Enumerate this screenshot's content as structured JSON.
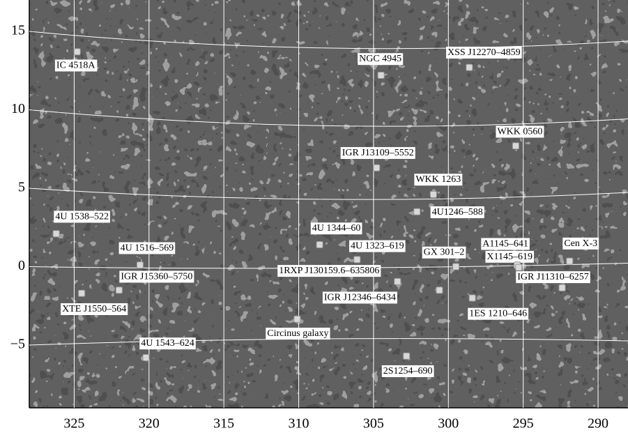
{
  "chart_data": {
    "type": "scatter",
    "labels": [
      "IC 4518A",
      "NGC 4945",
      "XSS J12270–4859",
      "WKK 0560",
      "IGR J13109–5552",
      "WKK 1263",
      "4U1246–588",
      "4U 1538–522",
      "4U 1344–60",
      "4U 1516–569",
      "4U 1323–619",
      "GX 301–2",
      "A1145–641",
      "X1145–619",
      "Cen X-3",
      "IGR J11310–6257",
      "1RXP J130159.6–635806",
      "IGR J15360–5750",
      "XTE J1550–564",
      "IGR J12346–6434",
      "1ES 1210–646",
      "Circinus galaxy",
      "4U 1543–624",
      "2S1254–690"
    ],
    "x": [
      324.8,
      304.5,
      298.6,
      295.5,
      304.8,
      301.0,
      302.1,
      326.2,
      308.6,
      320.6,
      306.1,
      299.5,
      295.4,
      295.3,
      291.9,
      292.4,
      303.4,
      322.0,
      324.5,
      300.6,
      298.4,
      310.1,
      320.2,
      302.8
    ],
    "values": [
      13.7,
      12.2,
      12.7,
      7.7,
      6.3,
      4.6,
      3.5,
      2.1,
      1.4,
      0.1,
      0.45,
      0.0,
      0.1,
      -0.05,
      0.35,
      -1.35,
      -0.95,
      -1.5,
      -1.7,
      -1.5,
      -2.0,
      -3.35,
      -5.8,
      -5.7
    ],
    "color": "#d8d8d8",
    "xlim": [
      328,
      288
    ],
    "ylim": [
      -9,
      17
    ],
    "xticks": [
      325,
      320,
      315,
      310,
      305,
      300,
      295,
      290
    ],
    "yticks": [
      15,
      10,
      5,
      0,
      {
        "value": -5,
        "label": "−5"
      }
    ],
    "grid": true
  }
}
